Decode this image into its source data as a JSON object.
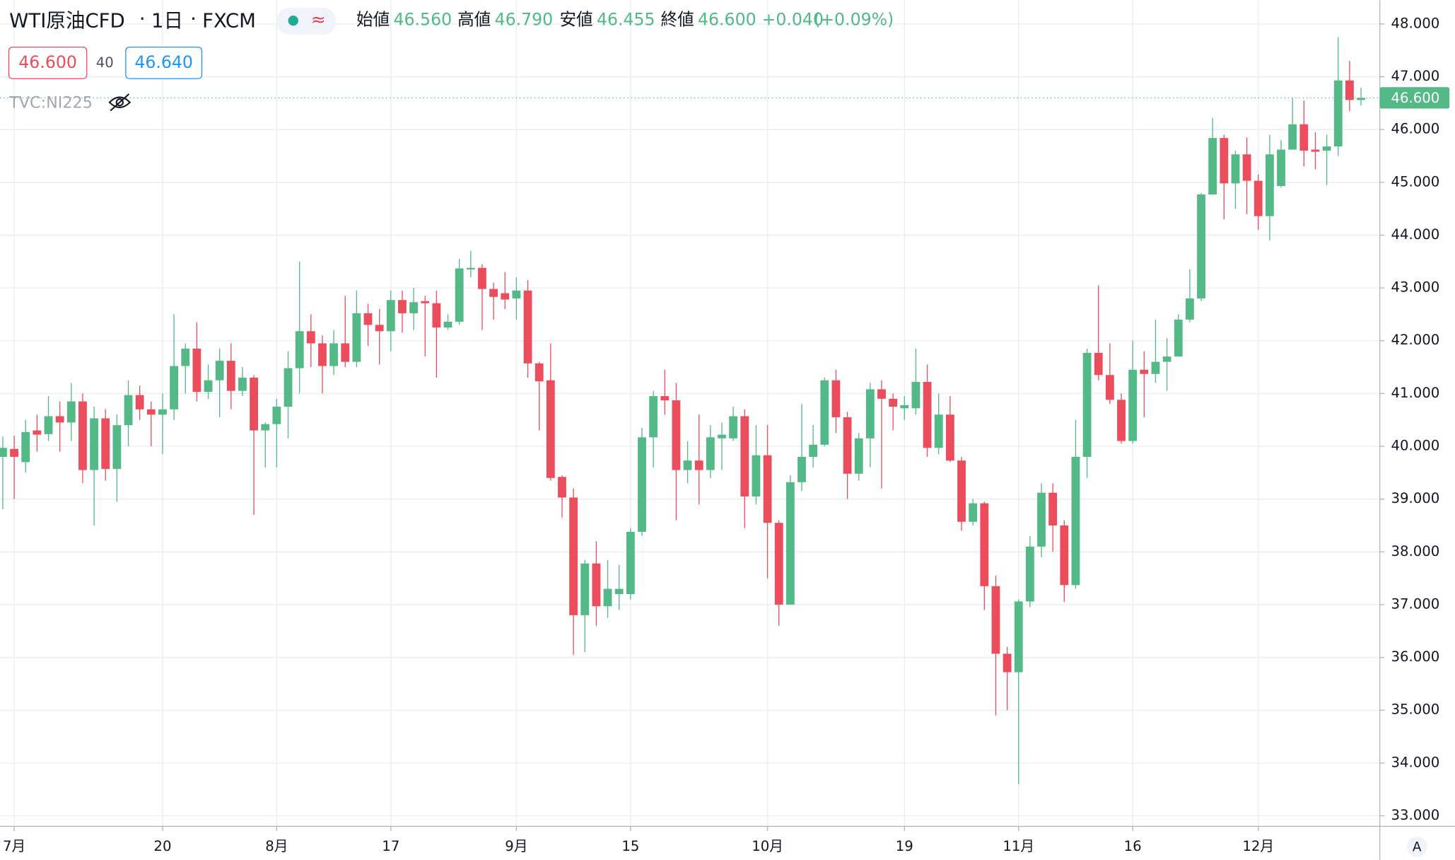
{
  "legend": {
    "symbol": "WTI原油CFD",
    "interval": "1日",
    "exchange": "FXCM",
    "ohlc": [
      {
        "label": "始値",
        "value": "46.560"
      },
      {
        "label": "高値",
        "value": "46.790"
      },
      {
        "label": "安値",
        "value": "46.455"
      },
      {
        "label": "終値",
        "value": "46.600"
      }
    ],
    "change": "+0.040",
    "change_pct": "(+0.09%)",
    "sell_price": "46.600",
    "spread": "40",
    "buy_price": "46.640",
    "overlay": "TVC:NI225",
    "auto_button": "A"
  },
  "chart_data": {
    "type": "candlestick",
    "up_color": "#53b987",
    "down_color": "#eb4d5c",
    "grid": true,
    "ylim": [
      32.8,
      48.45
    ],
    "yticks": [
      {
        "value": 33,
        "label": "33.000"
      },
      {
        "value": 34,
        "label": "34.000"
      },
      {
        "value": 35,
        "label": "35.000"
      },
      {
        "value": 36,
        "label": "36.000"
      },
      {
        "value": 37,
        "label": "37.000"
      },
      {
        "value": 38,
        "label": "38.000"
      },
      {
        "value": 39,
        "label": "39.000"
      },
      {
        "value": 40,
        "label": "40.000"
      },
      {
        "value": 41,
        "label": "41.000"
      },
      {
        "value": 42,
        "label": "42.000"
      },
      {
        "value": 43,
        "label": "43.000"
      },
      {
        "value": 44,
        "label": "44.000"
      },
      {
        "value": 45,
        "label": "45.000"
      },
      {
        "value": 46,
        "label": "46.000"
      },
      {
        "value": 47,
        "label": "47.000"
      },
      {
        "value": 48,
        "label": "48.000"
      }
    ],
    "last_price": {
      "value": 46.6,
      "label": "46.600"
    },
    "categories": [
      null,
      "7月",
      null,
      null,
      null,
      null,
      null,
      null,
      null,
      null,
      null,
      null,
      null,
      null,
      "20",
      null,
      null,
      null,
      null,
      null,
      null,
      null,
      null,
      null,
      "8月",
      null,
      null,
      null,
      null,
      null,
      null,
      null,
      null,
      null,
      "17",
      null,
      null,
      null,
      null,
      null,
      null,
      null,
      null,
      null,
      null,
      "9月",
      null,
      null,
      null,
      null,
      null,
      null,
      null,
      null,
      null,
      "15",
      null,
      null,
      null,
      null,
      null,
      null,
      null,
      null,
      null,
      null,
      null,
      "10月",
      null,
      null,
      null,
      null,
      null,
      null,
      null,
      null,
      null,
      null,
      null,
      "19",
      null,
      null,
      null,
      null,
      null,
      null,
      null,
      null,
      null,
      "11月",
      null,
      null,
      null,
      null,
      null,
      null,
      null,
      null,
      null,
      "16",
      null,
      null,
      null,
      null,
      null,
      null,
      null,
      null,
      null,
      null,
      "12月",
      null,
      null,
      null,
      null,
      null,
      null,
      null,
      null,
      null
    ],
    "series": [
      {
        "name": "WTI原油CFD",
        "open": [
          39.8,
          39.95,
          39.7,
          40.3,
          40.23,
          40.57,
          40.45,
          40.85,
          39.55,
          40.53,
          39.57,
          40.4,
          40.97,
          40.7,
          40.6,
          40.7,
          41.52,
          41.85,
          41.03,
          41.25,
          41.62,
          41.05,
          41.3,
          40.3,
          40.42,
          40.75,
          41.48,
          42.18,
          41.95,
          41.52,
          41.95,
          41.6,
          42.52,
          42.3,
          42.18,
          42.77,
          42.52,
          42.75,
          42.71,
          42.25,
          42.36,
          43.35,
          43.38,
          42.98,
          42.9,
          42.8,
          42.95,
          41.57,
          41.25,
          39.42,
          39.03,
          36.8,
          37.78,
          36.97,
          37.2,
          37.2,
          38.38,
          40.17,
          40.95,
          40.87,
          39.55,
          39.73,
          39.55,
          40.15,
          40.15,
          40.57,
          39.05,
          39.83,
          38.55,
          37.0,
          39.32,
          39.8,
          40.03,
          41.25,
          40.55,
          39.48,
          40.15,
          41.08,
          40.9,
          40.72,
          40.72,
          41.22,
          39.97,
          40.6,
          39.73,
          38.57,
          38.92,
          37.35,
          36.07,
          35.72,
          37.06,
          38.1,
          39.12,
          38.5,
          37.37,
          39.8,
          41.77,
          41.35,
          40.88,
          40.1,
          41.45,
          41.37,
          41.6,
          41.7,
          42.4,
          42.8,
          44.77,
          45.84,
          44.98,
          45.53,
          45.03,
          44.36,
          44.93,
          45.62,
          46.1,
          45.62,
          45.6,
          45.68,
          46.93,
          46.56
        ],
        "high": [
          40.18,
          40.2,
          40.5,
          40.6,
          40.95,
          40.85,
          41.2,
          41.0,
          40.75,
          40.7,
          40.6,
          41.25,
          41.15,
          40.85,
          41.0,
          42.5,
          41.95,
          42.35,
          41.55,
          41.85,
          41.95,
          41.5,
          41.35,
          40.45,
          40.9,
          41.8,
          43.5,
          42.5,
          42.1,
          42.2,
          42.85,
          42.95,
          42.7,
          42.6,
          42.95,
          42.95,
          43.0,
          42.85,
          42.95,
          42.5,
          43.55,
          43.7,
          43.45,
          43.1,
          43.3,
          43.2,
          43.15,
          41.6,
          41.95,
          39.45,
          39.2,
          37.85,
          38.2,
          37.85,
          37.75,
          38.45,
          40.35,
          41.05,
          41.45,
          41.2,
          40.1,
          40.6,
          40.4,
          40.45,
          40.75,
          40.7,
          40.4,
          40.4,
          38.6,
          39.45,
          40.8,
          40.4,
          41.3,
          41.45,
          40.65,
          40.25,
          41.2,
          41.25,
          41.0,
          40.95,
          41.85,
          41.55,
          41.0,
          40.95,
          39.8,
          39.0,
          38.95,
          37.55,
          36.2,
          37.1,
          38.3,
          39.3,
          39.3,
          38.6,
          40.5,
          41.85,
          43.05,
          41.95,
          41.0,
          42.0,
          41.8,
          42.4,
          42.05,
          42.5,
          43.35,
          44.8,
          46.22,
          45.9,
          45.6,
          45.85,
          45.15,
          45.9,
          45.8,
          46.6,
          46.55,
          45.95,
          45.9,
          47.75,
          47.3,
          46.79
        ],
        "low": [
          38.81,
          39.0,
          39.5,
          39.9,
          40.1,
          39.9,
          40.1,
          39.3,
          38.5,
          39.35,
          38.95,
          40.0,
          40.5,
          40.0,
          39.85,
          40.5,
          41.0,
          40.85,
          40.9,
          40.55,
          40.7,
          40.95,
          38.7,
          39.6,
          39.6,
          40.15,
          41.0,
          41.5,
          41.0,
          41.35,
          41.5,
          41.5,
          41.9,
          41.55,
          41.8,
          42.15,
          42.2,
          41.7,
          41.3,
          42.2,
          42.3,
          43.2,
          42.2,
          42.4,
          42.6,
          42.4,
          41.3,
          40.3,
          39.35,
          38.65,
          36.05,
          36.1,
          36.6,
          36.75,
          36.9,
          37.1,
          38.3,
          39.6,
          40.6,
          38.6,
          39.3,
          38.9,
          39.4,
          39.55,
          40.1,
          38.45,
          38.9,
          37.5,
          36.6,
          37.0,
          39.15,
          39.6,
          40.0,
          40.25,
          39.0,
          39.35,
          39.6,
          39.2,
          40.3,
          40.5,
          40.6,
          39.8,
          39.85,
          39.7,
          38.4,
          38.5,
          36.9,
          34.9,
          35.0,
          33.6,
          36.95,
          37.9,
          38.0,
          37.05,
          37.3,
          39.4,
          41.25,
          40.8,
          40.05,
          40.05,
          40.55,
          41.2,
          41.05,
          41.7,
          42.35,
          42.75,
          44.8,
          44.3,
          44.5,
          44.4,
          44.1,
          43.9,
          44.9,
          45.62,
          45.3,
          45.25,
          44.95,
          45.5,
          46.35,
          46.455
        ],
        "close": [
          39.97,
          39.8,
          40.27,
          40.22,
          40.57,
          40.45,
          40.85,
          39.55,
          40.53,
          39.57,
          40.4,
          40.97,
          40.7,
          40.6,
          40.7,
          41.52,
          41.85,
          41.03,
          41.25,
          41.62,
          41.05,
          41.3,
          40.3,
          40.42,
          40.75,
          41.48,
          42.18,
          41.95,
          41.52,
          41.95,
          41.6,
          42.52,
          42.3,
          42.18,
          42.77,
          42.52,
          42.73,
          42.71,
          42.25,
          42.36,
          43.37,
          43.38,
          42.98,
          42.83,
          42.78,
          42.95,
          41.57,
          41.23,
          39.4,
          39.03,
          36.8,
          37.78,
          36.97,
          37.3,
          37.3,
          38.38,
          40.17,
          40.95,
          40.87,
          39.55,
          39.73,
          39.55,
          40.17,
          40.22,
          40.57,
          39.05,
          39.83,
          38.55,
          37.0,
          39.32,
          39.8,
          40.03,
          41.25,
          40.55,
          39.48,
          40.15,
          41.08,
          40.9,
          40.75,
          40.78,
          41.22,
          39.97,
          40.6,
          39.73,
          38.57,
          38.92,
          37.35,
          36.07,
          35.72,
          37.06,
          38.1,
          39.12,
          38.5,
          37.37,
          39.8,
          41.77,
          41.35,
          40.88,
          40.1,
          41.45,
          41.37,
          41.6,
          41.7,
          42.4,
          42.8,
          44.77,
          45.84,
          44.98,
          45.53,
          45.03,
          44.36,
          45.53,
          45.62,
          46.1,
          45.6,
          45.58,
          45.68,
          46.93,
          46.56,
          46.6
        ]
      }
    ]
  }
}
